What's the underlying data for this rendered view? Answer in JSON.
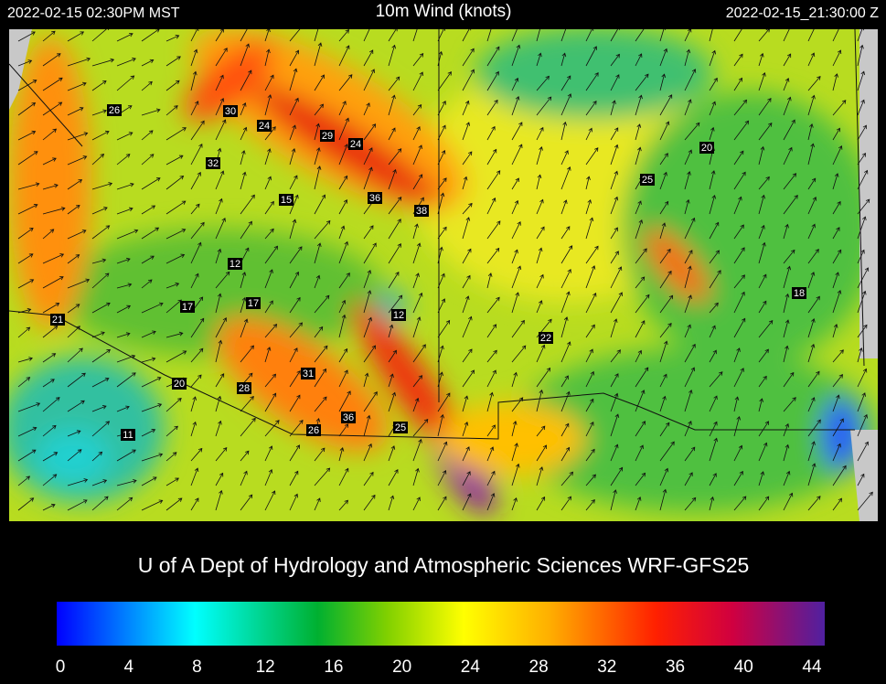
{
  "header": {
    "local_time": "2022-02-15 02:30PM MST",
    "title": "10m Wind (knots)",
    "utc_time": "2022-02-15_21:30:00 Z"
  },
  "map": {
    "wind_labels": [
      "26",
      "30",
      "24",
      "29",
      "24",
      "32",
      "15",
      "36",
      "38",
      "20",
      "25",
      "12",
      "17",
      "17",
      "12",
      "21",
      "18",
      "22",
      "31",
      "20",
      "28",
      "36",
      "26",
      "25",
      "11"
    ]
  },
  "footer": {
    "credit": "U of A Dept of Hydrology and Atmospheric Sciences WRF-GFS25"
  },
  "colorbar": {
    "range": [
      0,
      44
    ],
    "ticks": [
      0,
      4,
      8,
      12,
      16,
      20,
      24,
      28,
      32,
      36,
      40,
      44
    ]
  }
}
